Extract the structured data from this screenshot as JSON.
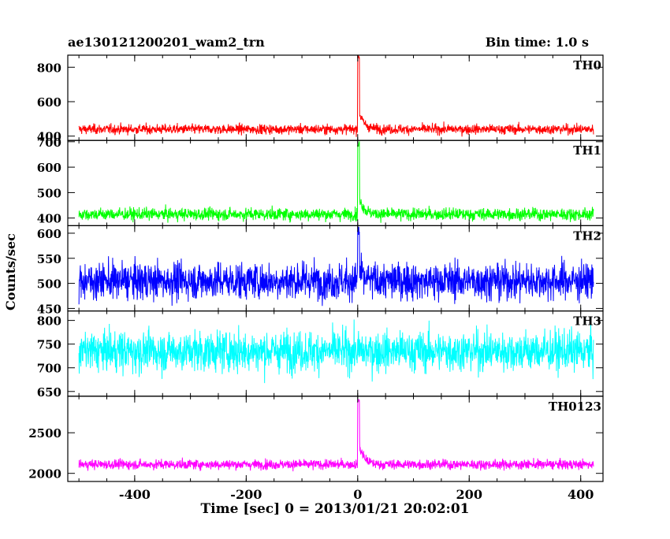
{
  "header": {
    "title": "ae130121200201_wam2_trn",
    "bin_time": "Bin time: 1.0 s"
  },
  "chart_data": {
    "type": "line",
    "xlabel": "Time [sec] 0 = 2013/01/21 20:02:01",
    "ylabel": "Counts/sec",
    "xlim": [
      -520,
      440
    ],
    "x_ticks": [
      -400,
      -200,
      0,
      200,
      400
    ],
    "bin_time_s": 1.0,
    "data_x_range": [
      -500,
      423
    ],
    "panels": [
      {
        "name": "TH0",
        "color": "#ff0000",
        "ylim": [
          375,
          870
        ],
        "y_ticks": [
          400,
          600,
          800
        ],
        "baseline": 440,
        "noise": 20,
        "peak": 860,
        "tail": 95,
        "tau": 9
      },
      {
        "name": "TH1",
        "color": "#00ff00",
        "ylim": [
          370,
          705
        ],
        "y_ticks": [
          400,
          500,
          600,
          700
        ],
        "baseline": 415,
        "noise": 17,
        "peak": 690,
        "tail": 70,
        "tau": 8
      },
      {
        "name": "TH2",
        "color": "#0000ff",
        "ylim": [
          445,
          615
        ],
        "y_ticks": [
          450,
          500,
          550,
          600
        ],
        "baseline": 505,
        "noise": 26,
        "peak": 600,
        "tail": 15,
        "tau": 8
      },
      {
        "name": "TH3",
        "color": "#00ffff",
        "ylim": [
          640,
          820
        ],
        "y_ticks": [
          650,
          700,
          750,
          800
        ],
        "baseline": 735,
        "noise": 30,
        "peak": 0,
        "tail": 0,
        "tau": 8
      },
      {
        "name": "TH0123",
        "color": "#ff00ff",
        "ylim": [
          1900,
          2950
        ],
        "y_ticks": [
          2000,
          2500
        ],
        "baseline": 2110,
        "noise": 42,
        "peak": 2900,
        "tail": 230,
        "tau": 9
      }
    ]
  }
}
